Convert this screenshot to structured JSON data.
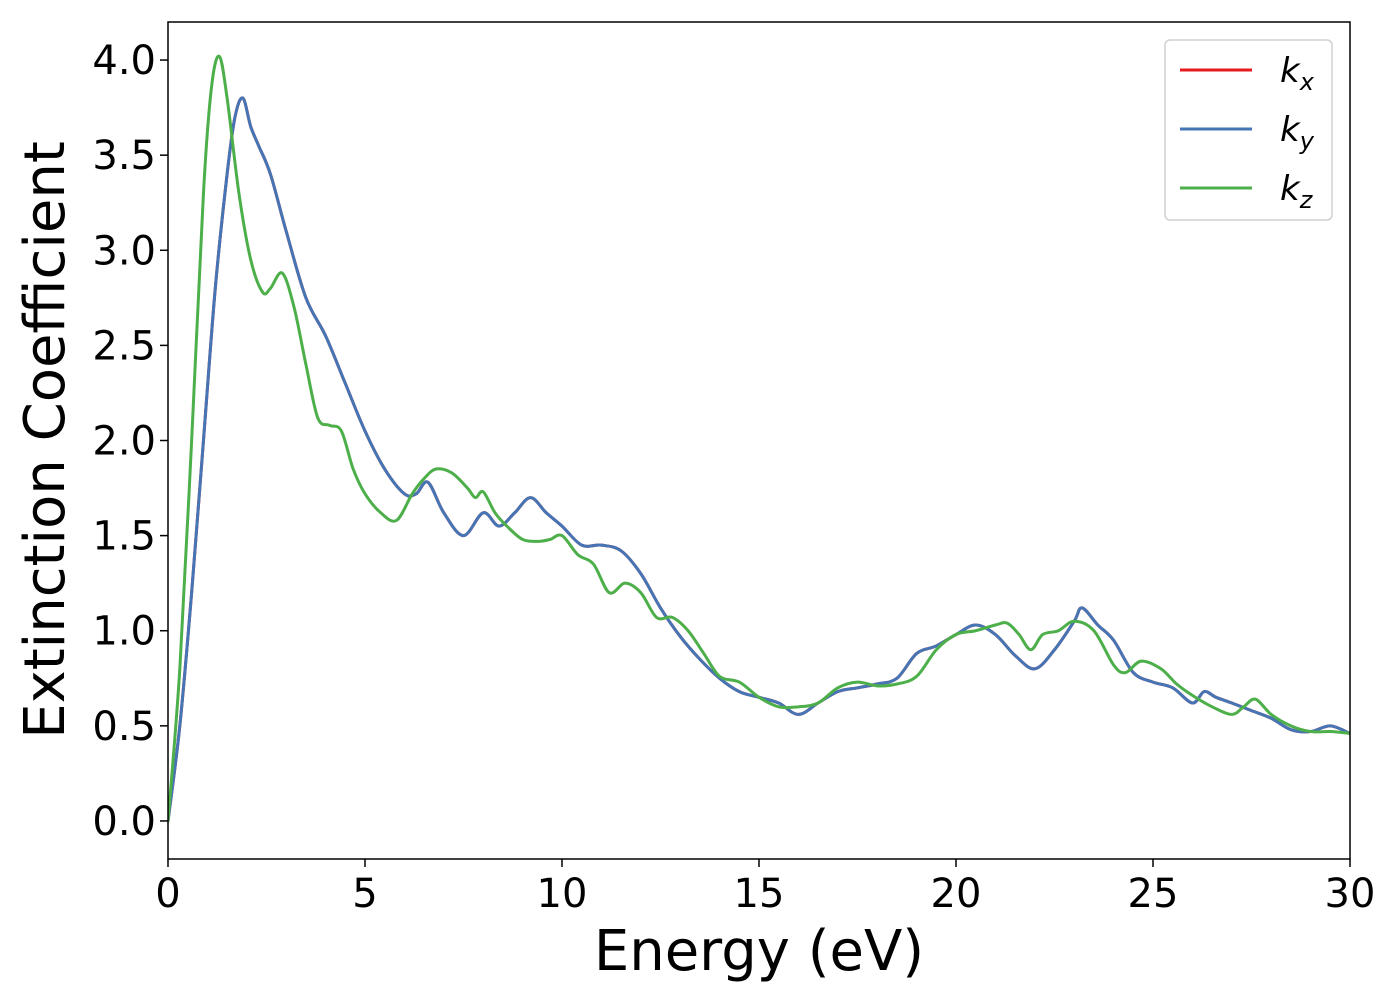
{
  "chart_data": {
    "type": "line",
    "title": "",
    "xlabel": "Energy (eV)",
    "ylabel": "Extinction Coefficient",
    "xlim": [
      0,
      30
    ],
    "ylim": [
      -0.2,
      4.2
    ],
    "xticks": [
      0,
      5,
      10,
      15,
      20,
      25,
      30
    ],
    "xtick_labels": [
      "0",
      "5",
      "10",
      "15",
      "20",
      "25",
      "30"
    ],
    "yticks": [
      0.0,
      0.5,
      1.0,
      1.5,
      2.0,
      2.5,
      3.0,
      3.5,
      4.0
    ],
    "ytick_labels": [
      "0.0",
      "0.5",
      "1.0",
      "1.5",
      "2.0",
      "2.5",
      "3.0",
      "3.5",
      "4.0"
    ],
    "grid": false,
    "legend_position": "top-right",
    "series": [
      {
        "name": "k",
        "subscript": "x",
        "color": "#e41a1c",
        "x": [
          0,
          0.3,
          0.6,
          0.9,
          1.2,
          1.5,
          1.7,
          1.9,
          2.1,
          2.3,
          2.6,
          3.0,
          3.5,
          4.0,
          4.5,
          5.0,
          5.5,
          6.0,
          6.3,
          6.6,
          7.0,
          7.5,
          8.0,
          8.4,
          8.8,
          9.2,
          9.6,
          10.0,
          10.5,
          11.0,
          11.5,
          12.0,
          12.5,
          13.0,
          13.5,
          14.0,
          14.5,
          15.0,
          15.5,
          16.0,
          16.5,
          17.0,
          17.5,
          18.0,
          18.5,
          19.0,
          19.5,
          20.0,
          20.5,
          21.0,
          21.5,
          22.0,
          22.5,
          23.0,
          23.2,
          23.6,
          24.0,
          24.5,
          25.0,
          25.5,
          26.0,
          26.3,
          26.6,
          27.0,
          27.5,
          28.0,
          28.5,
          29.0,
          29.5,
          30.0
        ],
        "y": [
          0.0,
          0.5,
          1.2,
          2.0,
          2.8,
          3.4,
          3.7,
          3.8,
          3.65,
          3.55,
          3.4,
          3.1,
          2.75,
          2.55,
          2.3,
          2.05,
          1.85,
          1.72,
          1.72,
          1.78,
          1.62,
          1.5,
          1.62,
          1.55,
          1.62,
          1.7,
          1.62,
          1.55,
          1.45,
          1.45,
          1.42,
          1.3,
          1.12,
          0.97,
          0.85,
          0.75,
          0.68,
          0.65,
          0.62,
          0.56,
          0.62,
          0.68,
          0.7,
          0.72,
          0.75,
          0.88,
          0.92,
          0.98,
          1.03,
          0.98,
          0.87,
          0.8,
          0.9,
          1.05,
          1.12,
          1.03,
          0.95,
          0.78,
          0.73,
          0.7,
          0.62,
          0.68,
          0.65,
          0.62,
          0.58,
          0.54,
          0.48,
          0.47,
          0.5,
          0.46
        ]
      },
      {
        "name": "k",
        "subscript": "y",
        "color": "#4575b4",
        "x": [
          0,
          0.3,
          0.6,
          0.9,
          1.2,
          1.5,
          1.7,
          1.9,
          2.1,
          2.3,
          2.6,
          3.0,
          3.5,
          4.0,
          4.5,
          5.0,
          5.5,
          6.0,
          6.3,
          6.6,
          7.0,
          7.5,
          8.0,
          8.4,
          8.8,
          9.2,
          9.6,
          10.0,
          10.5,
          11.0,
          11.5,
          12.0,
          12.5,
          13.0,
          13.5,
          14.0,
          14.5,
          15.0,
          15.5,
          16.0,
          16.5,
          17.0,
          17.5,
          18.0,
          18.5,
          19.0,
          19.5,
          20.0,
          20.5,
          21.0,
          21.5,
          22.0,
          22.5,
          23.0,
          23.2,
          23.6,
          24.0,
          24.5,
          25.0,
          25.5,
          26.0,
          26.3,
          26.6,
          27.0,
          27.5,
          28.0,
          28.5,
          29.0,
          29.5,
          30.0
        ],
        "y": [
          0.0,
          0.5,
          1.2,
          2.0,
          2.8,
          3.4,
          3.7,
          3.8,
          3.65,
          3.55,
          3.4,
          3.1,
          2.75,
          2.55,
          2.3,
          2.05,
          1.85,
          1.72,
          1.72,
          1.78,
          1.62,
          1.5,
          1.62,
          1.55,
          1.62,
          1.7,
          1.62,
          1.55,
          1.45,
          1.45,
          1.42,
          1.3,
          1.12,
          0.97,
          0.85,
          0.75,
          0.68,
          0.65,
          0.62,
          0.56,
          0.62,
          0.68,
          0.7,
          0.72,
          0.75,
          0.88,
          0.92,
          0.98,
          1.03,
          0.98,
          0.87,
          0.8,
          0.9,
          1.05,
          1.12,
          1.03,
          0.95,
          0.78,
          0.73,
          0.7,
          0.62,
          0.68,
          0.65,
          0.62,
          0.58,
          0.54,
          0.48,
          0.47,
          0.5,
          0.46
        ]
      },
      {
        "name": "k",
        "subscript": "z",
        "color": "#4daf4a",
        "x": [
          0,
          0.3,
          0.6,
          0.9,
          1.1,
          1.3,
          1.5,
          1.8,
          2.1,
          2.4,
          2.6,
          2.9,
          3.2,
          3.5,
          3.8,
          4.1,
          4.4,
          4.7,
          5.0,
          5.4,
          5.8,
          6.2,
          6.5,
          6.8,
          7.2,
          7.6,
          7.8,
          8.0,
          8.3,
          8.6,
          9.0,
          9.4,
          9.7,
          10.0,
          10.4,
          10.8,
          11.2,
          11.6,
          12.0,
          12.4,
          12.8,
          13.2,
          13.6,
          14.0,
          14.5,
          15.0,
          15.5,
          16.0,
          16.5,
          17.0,
          17.5,
          18.0,
          18.5,
          19.0,
          19.5,
          20.0,
          20.5,
          21.0,
          21.3,
          21.6,
          21.9,
          22.2,
          22.6,
          23.0,
          23.5,
          24.0,
          24.3,
          24.7,
          25.2,
          25.6,
          26.0,
          26.5,
          27.0,
          27.3,
          27.6,
          28.0,
          28.5,
          29.0,
          29.5,
          30.0
        ],
        "y": [
          0.0,
          0.8,
          2.0,
          3.3,
          3.85,
          4.02,
          3.8,
          3.3,
          2.95,
          2.78,
          2.8,
          2.88,
          2.7,
          2.4,
          2.12,
          2.08,
          2.05,
          1.85,
          1.72,
          1.62,
          1.58,
          1.72,
          1.8,
          1.85,
          1.83,
          1.75,
          1.7,
          1.73,
          1.62,
          1.55,
          1.48,
          1.47,
          1.48,
          1.5,
          1.4,
          1.35,
          1.2,
          1.25,
          1.2,
          1.07,
          1.07,
          1.0,
          0.88,
          0.76,
          0.73,
          0.65,
          0.6,
          0.6,
          0.62,
          0.7,
          0.73,
          0.71,
          0.72,
          0.76,
          0.9,
          0.98,
          1.0,
          1.03,
          1.04,
          0.98,
          0.9,
          0.98,
          1.0,
          1.05,
          1.0,
          0.82,
          0.78,
          0.84,
          0.8,
          0.72,
          0.66,
          0.6,
          0.56,
          0.6,
          0.64,
          0.56,
          0.5,
          0.47,
          0.47,
          0.46
        ]
      }
    ]
  }
}
